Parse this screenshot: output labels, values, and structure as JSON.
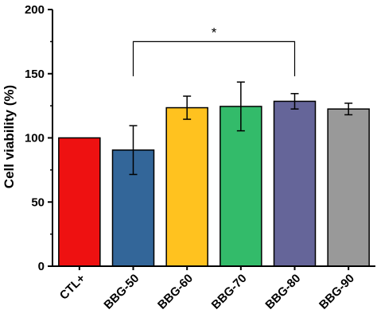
{
  "chart_data": {
    "type": "bar",
    "title": "",
    "xlabel": "",
    "ylabel": "Cell viability (%)",
    "ylim": [
      0,
      200
    ],
    "yticks": [
      0,
      50,
      100,
      150,
      200
    ],
    "grid": false,
    "categories": [
      "CTL+",
      "BBG-50",
      "BBG-60",
      "BBG-70",
      "BBG-80",
      "BBG-90"
    ],
    "values": [
      100,
      90.5,
      123.5,
      124.5,
      128.5,
      122.5
    ],
    "errors": [
      0,
      19,
      9,
      19,
      6,
      4.5
    ],
    "colors": [
      "#ee1111",
      "#336699",
      "#ffc21f",
      "#33bb6a",
      "#656599",
      "#999999"
    ],
    "annotations": [
      {
        "text": "*",
        "from": "BBG-50",
        "to": "BBG-80",
        "y": 175
      }
    ]
  }
}
